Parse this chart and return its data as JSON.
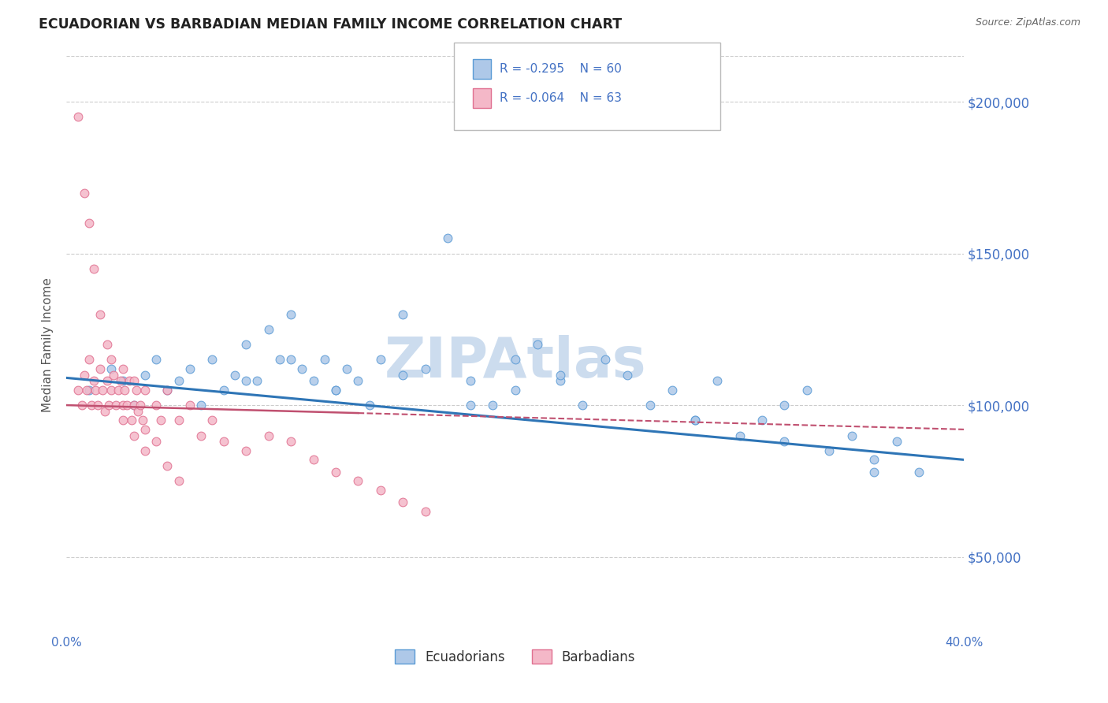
{
  "title": "ECUADORIAN VS BARBADIAN MEDIAN FAMILY INCOME CORRELATION CHART",
  "source": "Source: ZipAtlas.com",
  "ylabel": "Median Family Income",
  "watermark": "ZIPAtlas",
  "xlim": [
    0.0,
    0.4
  ],
  "ylim": [
    25000,
    215000
  ],
  "ytick_values": [
    50000,
    100000,
    150000,
    200000
  ],
  "ytick_labels": [
    "$50,000",
    "$100,000",
    "$150,000",
    "$200,000"
  ],
  "legend_label1": "Ecuadorians",
  "legend_label2": "Barbadians",
  "r1": "-0.295",
  "n1": "60",
  "r2": "-0.064",
  "n2": "63",
  "color_blue_fill": "#aec8e8",
  "color_blue_edge": "#5b9bd5",
  "color_blue_line": "#2e75b6",
  "color_pink_fill": "#f4b8c8",
  "color_pink_edge": "#e07090",
  "color_pink_line": "#c05070",
  "grid_color": "#cccccc",
  "background_color": "#ffffff",
  "title_color": "#222222",
  "axis_label_color": "#4472c4",
  "watermark_color": "#ccdcee",
  "blue_scatter_x": [
    0.01,
    0.02,
    0.025,
    0.03,
    0.035,
    0.04,
    0.045,
    0.05,
    0.055,
    0.06,
    0.065,
    0.07,
    0.075,
    0.08,
    0.085,
    0.09,
    0.095,
    0.1,
    0.105,
    0.11,
    0.115,
    0.12,
    0.125,
    0.13,
    0.135,
    0.14,
    0.15,
    0.16,
    0.17,
    0.18,
    0.19,
    0.2,
    0.21,
    0.22,
    0.23,
    0.24,
    0.25,
    0.26,
    0.27,
    0.28,
    0.29,
    0.3,
    0.31,
    0.32,
    0.33,
    0.34,
    0.35,
    0.36,
    0.37,
    0.38,
    0.15,
    0.2,
    0.1,
    0.08,
    0.12,
    0.18,
    0.22,
    0.28,
    0.32,
    0.36
  ],
  "blue_scatter_y": [
    105000,
    112000,
    108000,
    100000,
    110000,
    115000,
    105000,
    108000,
    112000,
    100000,
    115000,
    105000,
    110000,
    120000,
    108000,
    125000,
    115000,
    130000,
    112000,
    108000,
    115000,
    105000,
    112000,
    108000,
    100000,
    115000,
    130000,
    112000,
    155000,
    108000,
    100000,
    115000,
    120000,
    108000,
    100000,
    115000,
    110000,
    100000,
    105000,
    95000,
    108000,
    90000,
    95000,
    100000,
    105000,
    85000,
    90000,
    82000,
    88000,
    78000,
    110000,
    105000,
    115000,
    108000,
    105000,
    100000,
    110000,
    95000,
    88000,
    78000
  ],
  "pink_scatter_x": [
    0.005,
    0.007,
    0.008,
    0.009,
    0.01,
    0.011,
    0.012,
    0.013,
    0.014,
    0.015,
    0.016,
    0.017,
    0.018,
    0.019,
    0.02,
    0.021,
    0.022,
    0.023,
    0.024,
    0.025,
    0.026,
    0.027,
    0.028,
    0.029,
    0.03,
    0.031,
    0.032,
    0.033,
    0.034,
    0.035,
    0.04,
    0.042,
    0.045,
    0.05,
    0.055,
    0.06,
    0.065,
    0.07,
    0.08,
    0.09,
    0.1,
    0.11,
    0.12,
    0.13,
    0.14,
    0.15,
    0.005,
    0.008,
    0.01,
    0.012,
    0.015,
    0.018,
    0.02,
    0.025,
    0.03,
    0.035,
    0.025,
    0.03,
    0.035,
    0.04,
    0.045,
    0.05,
    0.16
  ],
  "pink_scatter_y": [
    105000,
    100000,
    110000,
    105000,
    115000,
    100000,
    108000,
    105000,
    100000,
    112000,
    105000,
    98000,
    108000,
    100000,
    105000,
    110000,
    100000,
    105000,
    108000,
    100000,
    105000,
    100000,
    108000,
    95000,
    100000,
    105000,
    98000,
    100000,
    95000,
    105000,
    100000,
    95000,
    105000,
    95000,
    100000,
    90000,
    95000,
    88000,
    85000,
    90000,
    88000,
    82000,
    78000,
    75000,
    72000,
    68000,
    195000,
    170000,
    160000,
    145000,
    130000,
    120000,
    115000,
    95000,
    90000,
    85000,
    112000,
    108000,
    92000,
    88000,
    80000,
    75000,
    65000
  ]
}
